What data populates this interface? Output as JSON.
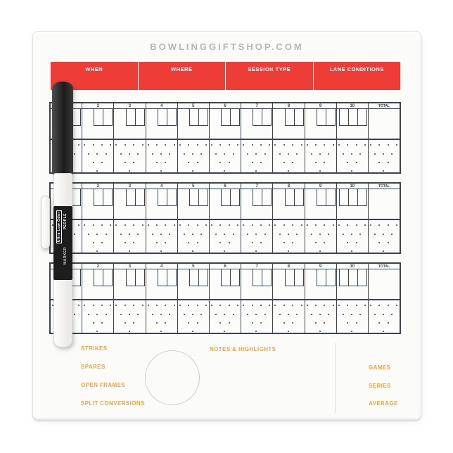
{
  "page": {
    "title": "BOWLINGGIFTSHOP.COM"
  },
  "colors": {
    "red_bar": "#ee3d36",
    "accent_orange": "#f0a43c",
    "grid_line": "#3a434e",
    "board_surface": "#fbfbfa"
  },
  "header_bar": {
    "columns": [
      {
        "label": "WHEN"
      },
      {
        "label": "WHERE"
      },
      {
        "label": "SESSION TYPE"
      },
      {
        "label": "LANE CONDITIONS"
      }
    ]
  },
  "scoresheet": {
    "games": 3,
    "frame_labels": [
      "1",
      "2",
      "3",
      "4",
      "5",
      "6",
      "7",
      "8",
      "9",
      "10"
    ],
    "total_label": "TOTAL",
    "balls_per_frame": 2,
    "balls_frame_ten": 3,
    "pins_per_diagram": 10
  },
  "stats": {
    "left_labels": [
      "STRIKES",
      "SPARES",
      "OPEN FRAMES",
      "SPLIT CONVERSIONS"
    ],
    "notes_label": "NOTES & HIGHLIGHTS",
    "right_labels": [
      "GAMES",
      "SERIES",
      "AVERAGE"
    ]
  },
  "marker": {
    "label_boxed": "Ultra Low Odor",
    "label_lines": [
      "PEOPLE",
      "MARKER"
    ]
  }
}
